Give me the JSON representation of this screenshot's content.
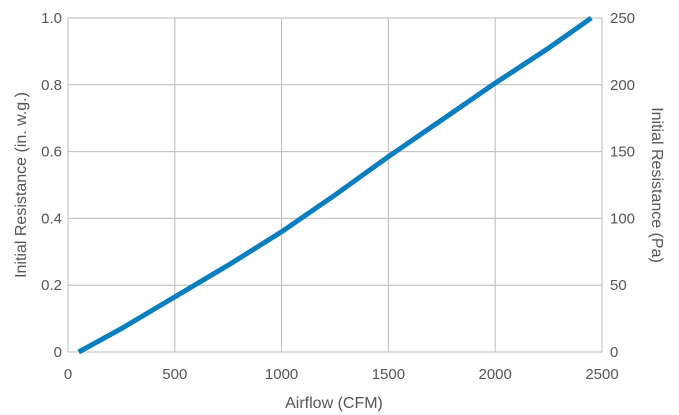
{
  "chart_data": {
    "type": "line",
    "title": "",
    "xlabel": "Airflow (CFM)",
    "ylabel": "Initial Resistance (in. w.g.)",
    "y2label": "Initial Resistance (Pa)",
    "xlim": [
      0,
      2500
    ],
    "ylim": [
      0,
      1.0
    ],
    "y2lim": [
      0,
      250
    ],
    "x_ticks": [
      "0",
      "500",
      "1000",
      "1500",
      "2000",
      "2500"
    ],
    "y_ticks": [
      "0",
      "0.2",
      "0.4",
      "0.6",
      "0.8",
      "1.0"
    ],
    "y2_ticks": [
      "0",
      "50",
      "100",
      "150",
      "200",
      "250"
    ],
    "grid": true,
    "series": [
      {
        "color": "#0a7fbf",
        "x": [
          50,
          250,
          500,
          750,
          1000,
          1250,
          1500,
          1750,
          2000,
          2250,
          2450
        ],
        "y": [
          0.0,
          0.07,
          0.165,
          0.26,
          0.36,
          0.47,
          0.585,
          0.695,
          0.805,
          0.91,
          1.0
        ]
      }
    ],
    "grid_color": "#bbbbbb",
    "text_color": "#555555"
  }
}
